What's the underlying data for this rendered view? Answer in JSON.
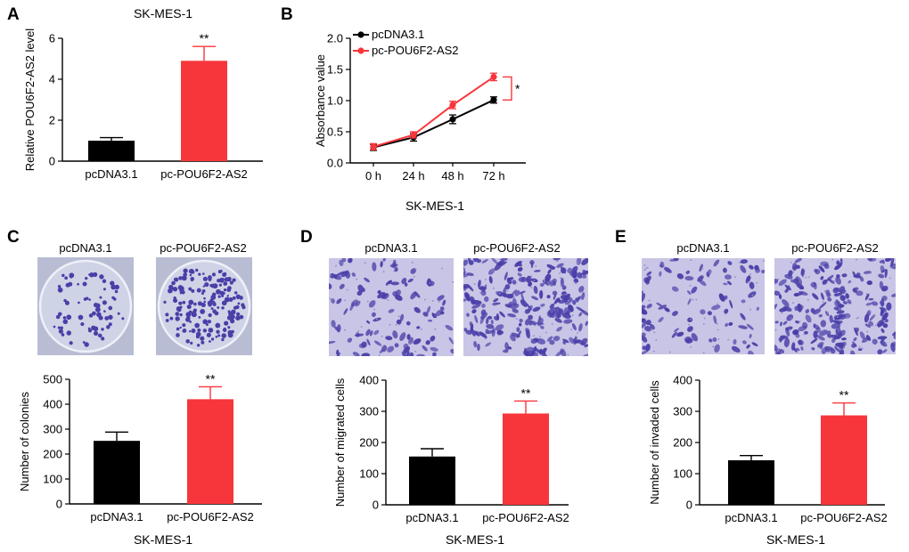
{
  "colors": {
    "control": "#000000",
    "treatment": "#f7363b",
    "stain": "#4a3fa8",
    "plate": "#cfd3e6",
    "membrane": "#c9c5e6"
  },
  "chart_data": [
    {
      "panel": "A",
      "type": "bar",
      "title": "SK-MES-1",
      "xlabel": "",
      "ylabel": "Relative POU6F2-AS2 level",
      "categories": [
        "pcDNA3.1",
        "pc-POU6F2-AS2"
      ],
      "values": [
        1.0,
        4.9
      ],
      "errors": [
        0.15,
        0.7
      ],
      "significance": [
        "",
        "**"
      ],
      "yticks": [
        0,
        2,
        4,
        6
      ],
      "ylim": [
        0,
        6
      ]
    },
    {
      "panel": "B",
      "type": "line",
      "title": "",
      "xlabel": "SK-MES-1",
      "ylabel": "Absorbance value",
      "categories": [
        "0 h",
        "24 h",
        "48 h",
        "72 h"
      ],
      "series": [
        {
          "name": "pcDNA3.1",
          "values": [
            0.25,
            0.41,
            0.7,
            1.01
          ],
          "errors": [
            0.05,
            0.06,
            0.07,
            0.05
          ]
        },
        {
          "name": "pc-POU6F2-AS2",
          "values": [
            0.26,
            0.45,
            0.93,
            1.38
          ],
          "errors": [
            0.05,
            0.05,
            0.06,
            0.06
          ]
        }
      ],
      "significance": "*",
      "yticks": [
        "0.0",
        "0.5",
        "1.0",
        "1.5",
        "2.0"
      ],
      "ylim": [
        0,
        2
      ]
    },
    {
      "panel": "C",
      "type": "bar",
      "title": "",
      "xlabel": "SK-MES-1",
      "ylabel": "Number of colonies",
      "categories": [
        "pcDNA3.1",
        "pc-POU6F2-AS2"
      ],
      "values": [
        253,
        420
      ],
      "errors": [
        35,
        50
      ],
      "significance": [
        "",
        "**"
      ],
      "yticks": [
        0,
        100,
        200,
        300,
        400,
        500
      ],
      "ylim": [
        0,
        500
      ]
    },
    {
      "panel": "D",
      "type": "bar",
      "title": "",
      "xlabel": "SK-MES-1",
      "ylabel": "Number of migrated cells",
      "categories": [
        "pcDNA3.1",
        "pc-POU6F2-AS2"
      ],
      "values": [
        155,
        293
      ],
      "errors": [
        25,
        40
      ],
      "significance": [
        "",
        "**"
      ],
      "yticks": [
        0,
        100,
        200,
        300,
        400
      ],
      "ylim": [
        0,
        400
      ]
    },
    {
      "panel": "E",
      "type": "bar",
      "title": "",
      "xlabel": "SK-MES-1",
      "ylabel": "Number of invaded cells",
      "categories": [
        "pcDNA3.1",
        "pc-POU6F2-AS2"
      ],
      "values": [
        143,
        287
      ],
      "errors": [
        15,
        40
      ],
      "significance": [
        "",
        "**"
      ],
      "yticks": [
        0,
        100,
        200,
        300,
        400
      ],
      "ylim": [
        0,
        400
      ]
    }
  ],
  "image_panels": [
    {
      "panel": "C",
      "kind": "colony-plate",
      "labels": [
        "pcDNA3.1",
        "pc-POU6F2-AS2"
      ]
    },
    {
      "panel": "D",
      "kind": "migration-field",
      "labels": [
        "pcDNA3.1",
        "pc-POU6F2-AS2"
      ]
    },
    {
      "panel": "E",
      "kind": "invasion-field",
      "labels": [
        "pcDNA3.1",
        "pc-POU6F2-AS2"
      ]
    }
  ]
}
